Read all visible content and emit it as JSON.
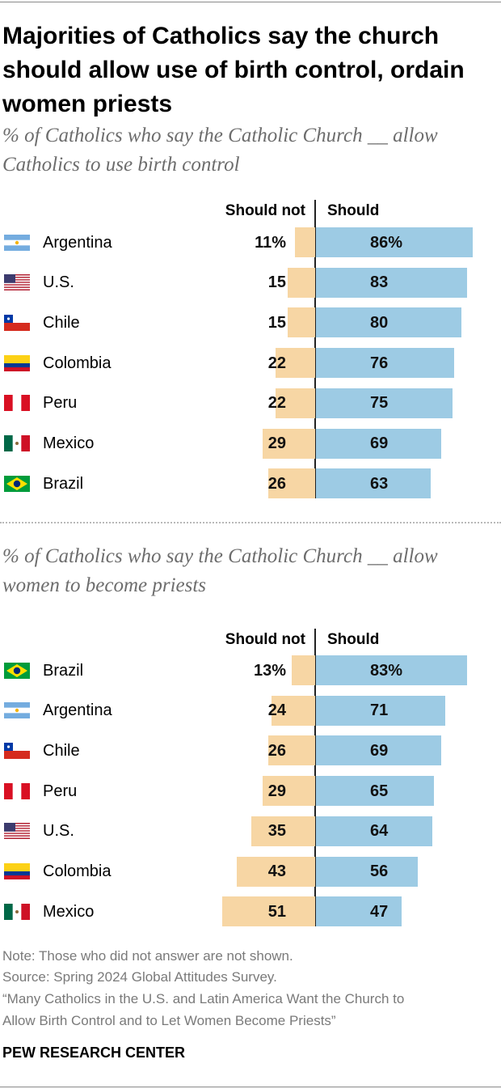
{
  "title": "Majorities of Catholics say the church should allow use of birth control, ordain women priests",
  "chart_data": [
    {
      "type": "bar",
      "subtitle": "% of Catholics who say the Catholic Church __ allow Catholics to use birth control",
      "columns": [
        "Should not",
        "Should"
      ],
      "categories": [
        "Argentina",
        "U.S.",
        "Chile",
        "Colombia",
        "Peru",
        "Mexico",
        "Brazil"
      ],
      "series": [
        {
          "name": "Should not",
          "values": [
            11,
            15,
            15,
            22,
            22,
            29,
            26
          ],
          "color": "#f7d6a4"
        },
        {
          "name": "Should",
          "values": [
            86,
            83,
            80,
            76,
            75,
            69,
            63
          ],
          "color": "#9dcbe4"
        }
      ],
      "labels_not": [
        "11%",
        "15",
        "15",
        "22",
        "22",
        "29",
        "26"
      ],
      "labels_should": [
        "86%",
        "83",
        "80",
        "76",
        "75",
        "69",
        "63"
      ],
      "flags": [
        "flag-argentina-icon",
        "flag-us-icon",
        "flag-chile-icon",
        "flag-colombia-icon",
        "flag-peru-icon",
        "flag-mexico-icon",
        "flag-brazil-icon"
      ]
    },
    {
      "type": "bar",
      "subtitle": "% of Catholics who say the Catholic Church __ allow women to become priests",
      "columns": [
        "Should not",
        "Should"
      ],
      "categories": [
        "Brazil",
        "Argentina",
        "Chile",
        "Peru",
        "U.S.",
        "Colombia",
        "Mexico"
      ],
      "series": [
        {
          "name": "Should not",
          "values": [
            13,
            24,
            26,
            29,
            35,
            43,
            51
          ],
          "color": "#f7d6a4"
        },
        {
          "name": "Should",
          "values": [
            83,
            71,
            69,
            65,
            64,
            56,
            47
          ],
          "color": "#9dcbe4"
        }
      ],
      "labels_not": [
        "13%",
        "24",
        "26",
        "29",
        "35",
        "43",
        "51"
      ],
      "labels_should": [
        "83%",
        "71",
        "69",
        "65",
        "64",
        "56",
        "47"
      ],
      "flags": [
        "flag-brazil-icon",
        "flag-argentina-icon",
        "flag-chile-icon",
        "flag-peru-icon",
        "flag-us-icon",
        "flag-colombia-icon",
        "flag-mexico-icon"
      ]
    }
  ],
  "notes": {
    "note": "Note: Those who did not answer are not shown.",
    "source": "Source: Spring 2024 Global Attitudes Survey.",
    "report_line1": "“Many Catholics in the U.S. and Latin America Want the Church to",
    "report_line2": "Allow Birth Control and to Let Women Become Priests”"
  },
  "brand": "PEW RESEARCH CENTER"
}
